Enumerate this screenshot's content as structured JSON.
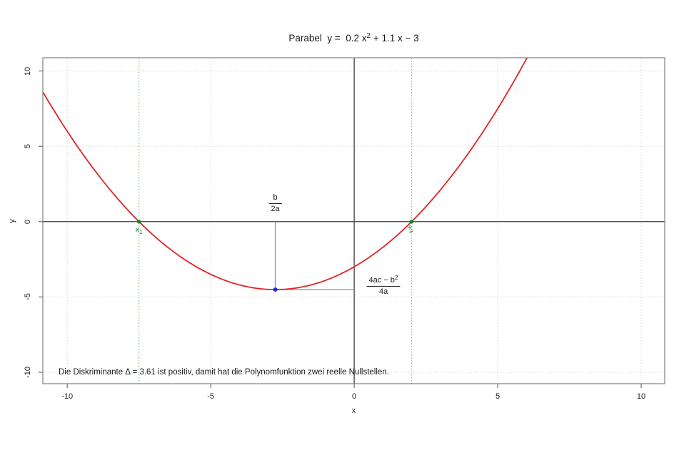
{
  "chart_data": {
    "type": "line",
    "title": {
      "prefix": "Parabel  y =  0.2 x",
      "sup": "2",
      "suffix": " + 1.1 x − 3"
    },
    "xlabel": "x",
    "ylabel": "y",
    "coefficients": {
      "a": 0.2,
      "b": 1.1,
      "c": -3
    },
    "discriminant": 3.61,
    "roots": {
      "x1": -7.5,
      "x2": 2
    },
    "vertex": {
      "x": -2.75,
      "y": -4.5125
    },
    "x_ticks": [
      -10,
      -5,
      0,
      5,
      10
    ],
    "y_ticks": [
      -10,
      -5,
      0,
      5,
      10
    ],
    "xlim": [
      -10.85,
      10.82
    ],
    "ylim": [
      -10.76,
      10.88
    ],
    "grid": true,
    "legend": false,
    "annotations": {
      "x1_label": {
        "base": "x",
        "sub": "1"
      },
      "x2_label": {
        "base": "x",
        "sub": "2"
      },
      "vertex_x_formula": {
        "numerator": "b",
        "denominator": "2a"
      },
      "vertex_y_formula": {
        "numerator_main": "4ac − b",
        "numerator_sup": "2",
        "denominator": "4a"
      },
      "note": "Die Diskriminante Δ = 3.61 ist positiv, damit hat die Polynomfunktion zwei reelle Nullstellen."
    },
    "colors": {
      "curve_red": "#e02424",
      "root_green": "#1f7a1f",
      "root_green_dotted": "#7fbf7f",
      "vertex_blue_dot": "#2929c4",
      "vertex_blue_line": "#8b8fdc",
      "grid_gray": "#d6d6d6",
      "axis_dark": "#3d3d3d",
      "box_gray": "#808080",
      "text_dark": "#1a1a1a"
    }
  }
}
